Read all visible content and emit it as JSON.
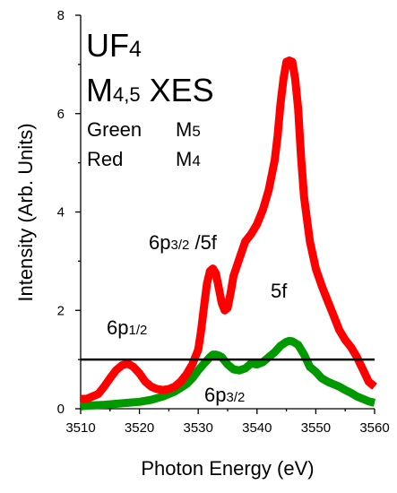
{
  "chart_data": {
    "type": "line",
    "xlabel": "Photon Energy (eV)",
    "ylabel": "Intensity (Arb. Units)",
    "xlim": [
      3510,
      3560
    ],
    "ylim": [
      0,
      8
    ],
    "xticks": [
      3510,
      3520,
      3530,
      3540,
      3550,
      3560
    ],
    "yticks": [
      0,
      2,
      4,
      6,
      8
    ],
    "x_tick_labels": [
      "3510",
      "3520",
      "3530",
      "3540",
      "3550",
      "3560"
    ],
    "y_tick_labels": [
      "0",
      "2",
      "4",
      "6",
      "8"
    ],
    "series": [
      {
        "name": "M4",
        "color": "#ff0000",
        "x": [
          3510,
          3511,
          3512,
          3513,
          3514,
          3515,
          3516,
          3517,
          3518,
          3519,
          3520,
          3521,
          3522,
          3523,
          3524,
          3525,
          3526,
          3527,
          3528,
          3529,
          3530,
          3530.5,
          3531,
          3531.5,
          3532,
          3532.5,
          3533,
          3533.5,
          3534,
          3534.5,
          3535,
          3535.5,
          3536,
          3537,
          3538,
          3539,
          3540,
          3541,
          3542,
          3543,
          3543.5,
          3544,
          3544.5,
          3545,
          3545.5,
          3546,
          3546.5,
          3547,
          3547.5,
          3548,
          3549,
          3550,
          3551,
          3552,
          3553,
          3554,
          3555,
          3556,
          3557,
          3558,
          3559,
          3560
        ],
        "values": [
          0.2,
          0.2,
          0.25,
          0.3,
          0.45,
          0.62,
          0.78,
          0.88,
          0.92,
          0.85,
          0.72,
          0.55,
          0.45,
          0.4,
          0.38,
          0.4,
          0.45,
          0.55,
          0.7,
          0.9,
          1.2,
          1.6,
          2.1,
          2.55,
          2.8,
          2.85,
          2.75,
          2.45,
          2.15,
          2.0,
          2.05,
          2.35,
          2.7,
          3.05,
          3.4,
          3.55,
          3.75,
          4.05,
          4.45,
          5.05,
          5.55,
          6.2,
          6.7,
          7.05,
          7.08,
          7.05,
          6.7,
          6.1,
          5.1,
          4.3,
          3.4,
          2.85,
          2.5,
          2.2,
          1.9,
          1.6,
          1.4,
          1.25,
          1.05,
          0.8,
          0.55,
          0.45
        ]
      },
      {
        "name": "M5",
        "color": "#009900",
        "x": [
          3510,
          3512,
          3514,
          3516,
          3518,
          3520,
          3522,
          3524,
          3526,
          3528,
          3529,
          3530,
          3531,
          3532,
          3532.5,
          3533,
          3533.5,
          3534,
          3535,
          3536,
          3537,
          3538,
          3539,
          3540,
          3541,
          3542,
          3543,
          3544,
          3545,
          3545.5,
          3546,
          3547,
          3548,
          3549,
          3550,
          3551,
          3552,
          3553,
          3554,
          3555,
          3556,
          3557,
          3558,
          3559,
          3560
        ],
        "values": [
          0.05,
          0.07,
          0.08,
          0.1,
          0.12,
          0.14,
          0.18,
          0.25,
          0.35,
          0.5,
          0.62,
          0.78,
          0.92,
          1.05,
          1.1,
          1.1,
          1.08,
          1.05,
          0.9,
          0.8,
          0.78,
          0.82,
          0.92,
          0.9,
          0.95,
          1.05,
          1.15,
          1.28,
          1.36,
          1.38,
          1.37,
          1.3,
          1.1,
          0.85,
          0.75,
          0.62,
          0.55,
          0.5,
          0.45,
          0.38,
          0.32,
          0.25,
          0.2,
          0.15,
          0.12
        ]
      }
    ],
    "reference_line": {
      "y": 1.0,
      "x_from": 3510,
      "x_to": 3560,
      "color": "#000000"
    },
    "annotations": {
      "sample_main": "UF",
      "sample_sub": "4",
      "edge_main": "M",
      "edge_sub": "4,5",
      "edge_tail": " XES",
      "legend_green_word": "Green",
      "legend_green_main": "M",
      "legend_green_sub": "5",
      "legend_red_word": "Red",
      "legend_red_main": "M",
      "legend_red_sub": "4",
      "peak_6p32_5f_main": "6p",
      "peak_6p32_5f_sub": "3/2",
      "peak_6p32_5f_tail": " /5f",
      "peak_5f": "5f",
      "peak_6p12_main": "6p",
      "peak_6p12_sub": "1/2",
      "peak_6p32_main": "6p",
      "peak_6p32_sub": "3/2"
    },
    "grid": false
  }
}
